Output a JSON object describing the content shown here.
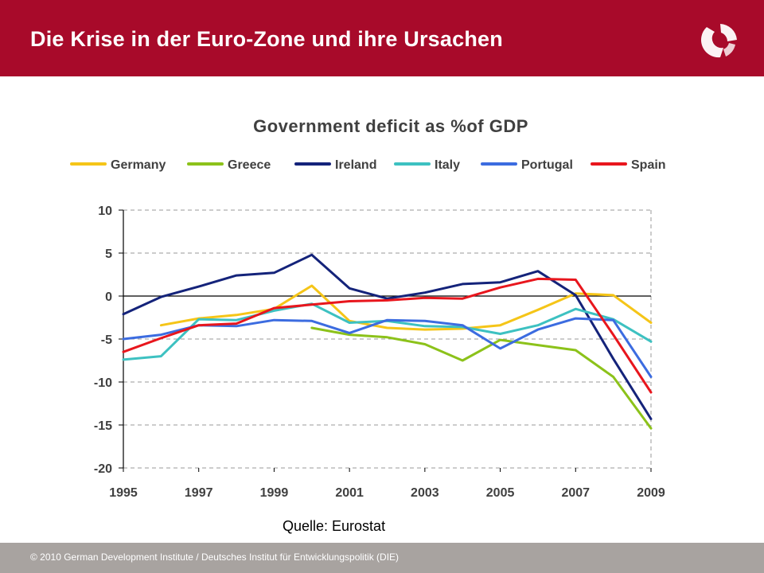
{
  "slide": {
    "title": "Die Krise in der Euro-Zone und ihre Ursachen",
    "source": "Quelle: Eurostat",
    "footer": "© 2010 German Development Institute / Deutsches Institut für Entwicklungspolitik (DIE)",
    "logo_icon": "die-logo-icon"
  },
  "colors": {
    "header": "#a80a2a",
    "footer": "#a8a3a0"
  },
  "chart_data": {
    "type": "line",
    "title": "Government deficit as %of GDP",
    "xlabel": "",
    "ylabel": "",
    "x": [
      1995,
      1996,
      1997,
      1998,
      1999,
      2000,
      2001,
      2002,
      2003,
      2004,
      2005,
      2006,
      2007,
      2008,
      2009
    ],
    "xticks": [
      "1995",
      "1997",
      "1999",
      "2001",
      "2003",
      "2005",
      "2007",
      "2009"
    ],
    "xlim": [
      1995,
      2009
    ],
    "ylim": [
      -20,
      10
    ],
    "yticks": [
      10,
      5,
      0,
      -5,
      -10,
      -15,
      -20
    ],
    "grid": true,
    "legend_position": "top",
    "series": [
      {
        "name": "Germany",
        "color": "#f5c518",
        "values": [
          null,
          -3.4,
          -2.6,
          -2.2,
          -1.5,
          1.2,
          -2.9,
          -3.7,
          -3.9,
          -3.8,
          -3.4,
          -1.6,
          0.3,
          0.1,
          -3.1
        ]
      },
      {
        "name": "Greece",
        "color": "#8cc21a",
        "values": [
          null,
          null,
          null,
          null,
          null,
          -3.7,
          -4.5,
          -4.8,
          -5.6,
          -7.5,
          -5.1,
          -5.7,
          -6.3,
          -9.4,
          -15.4
        ]
      },
      {
        "name": "Ireland",
        "color": "#14237a",
        "values": [
          -2.1,
          -0.1,
          1.1,
          2.4,
          2.7,
          4.8,
          0.9,
          -0.3,
          0.4,
          1.4,
          1.6,
          2.9,
          0.1,
          -7.3,
          -14.3
        ]
      },
      {
        "name": "Italy",
        "color": "#3dc1c1",
        "values": [
          -7.4,
          -7.0,
          -2.7,
          -2.8,
          -1.7,
          -0.9,
          -3.1,
          -2.9,
          -3.5,
          -3.6,
          -4.4,
          -3.4,
          -1.5,
          -2.7,
          -5.3
        ]
      },
      {
        "name": "Portugal",
        "color": "#3c6ce0",
        "values": [
          -5.0,
          -4.5,
          -3.4,
          -3.5,
          -2.8,
          -2.9,
          -4.3,
          -2.8,
          -2.9,
          -3.4,
          -6.1,
          -3.9,
          -2.6,
          -2.8,
          -9.4
        ]
      },
      {
        "name": "Spain",
        "color": "#e8161d",
        "values": [
          -6.5,
          -4.9,
          -3.4,
          -3.2,
          -1.4,
          -1.0,
          -0.6,
          -0.5,
          -0.2,
          -0.3,
          1.0,
          2.0,
          1.9,
          -4.5,
          -11.2
        ]
      }
    ]
  }
}
